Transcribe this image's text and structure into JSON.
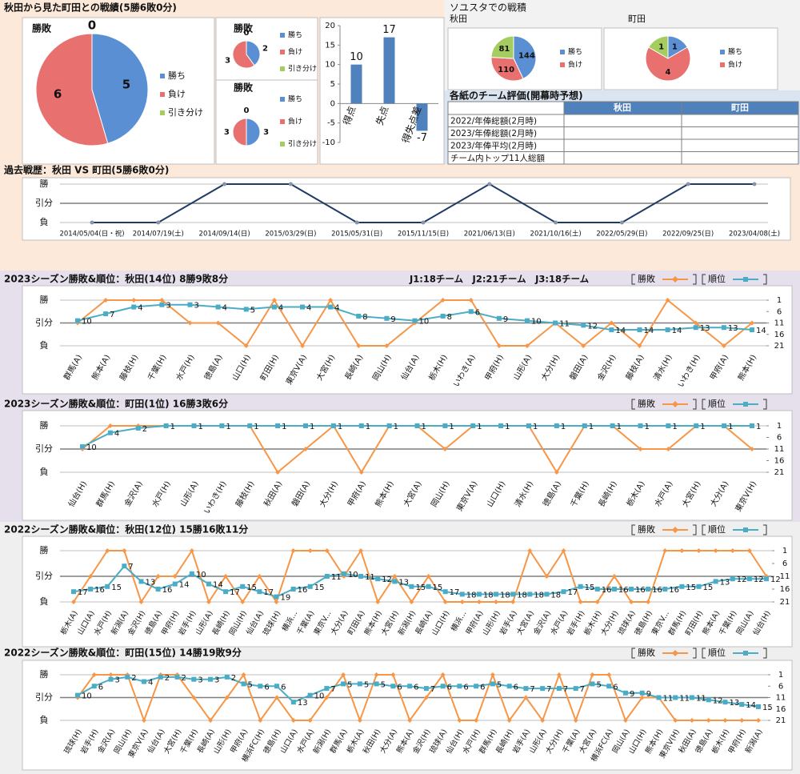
{
  "sections": {
    "record_title": "秋田から見た町田との戦績(5勝6敗0分)",
    "soyusta_title": "ソユスタでの戦積"
  },
  "table": {
    "title": "各紙のチーム評価(開幕時予想)",
    "columns": [
      "秋田",
      "町田"
    ],
    "rows": [
      "2022/年俸総額(2月時)",
      "2023/年俸総額(2月時)",
      "2023/年俸平均(2月時)",
      "チーム内トップ11人総額"
    ]
  },
  "chart_data": [
    {
      "type": "pie",
      "title": "勝敗",
      "categories": [
        "勝ち",
        "負け",
        "引き分け"
      ],
      "values": [
        5,
        6,
        0
      ],
      "colors": [
        "#5b8fd3",
        "#e8706e",
        "#a5cc5e"
      ]
    },
    {
      "type": "pie",
      "title": "勝敗",
      "categories": [
        "勝ち",
        "負け",
        "引き分け"
      ],
      "values": [
        2,
        3,
        0
      ],
      "colors": [
        "#5b8fd3",
        "#e8706e",
        "#a5cc5e"
      ]
    },
    {
      "type": "pie",
      "title": "勝敗",
      "categories": [
        "勝ち",
        "負け",
        "引き分け"
      ],
      "values": [
        3,
        3,
        0
      ],
      "colors": [
        "#5b8fd3",
        "#e8706e",
        "#a5cc5e"
      ]
    },
    {
      "type": "bar",
      "categories": [
        "得点",
        "失点",
        "得失点差"
      ],
      "values": [
        10,
        17,
        -7
      ],
      "color": "#4f81bd",
      "ylim": [
        -10,
        20
      ],
      "yticks": [
        -10,
        -5,
        0,
        5,
        10,
        15,
        20
      ]
    },
    {
      "type": "pie",
      "title": "秋田",
      "categories": [
        "勝ち",
        "負け",
        null
      ],
      "values": [
        144,
        110,
        81
      ],
      "colors": [
        "#5b8fd3",
        "#e8706e",
        "#a5cc5e"
      ]
    },
    {
      "type": "pie",
      "title": "町田",
      "categories": [
        "勝ち",
        "負け",
        null
      ],
      "values": [
        1,
        4,
        1
      ],
      "colors": [
        "#5b8fd3",
        "#e8706e",
        "#a5cc5e"
      ]
    },
    {
      "type": "line",
      "title": "過去戦歴：秋田 VS 町田(5勝6敗0分)",
      "categories": [
        "2014/05/04(日・祝)",
        "2014/07/19(土)",
        "2014/09/14(日)",
        "2015/03/29(日)",
        "2015/05/31(日)",
        "2015/11/15(日)",
        "2021/06/13(日)",
        "2021/10/16(土)",
        "2022/05/29(日)",
        "2022/09/25(日)",
        "2023/04/08(土)"
      ],
      "values": [
        -1,
        -1,
        1,
        1,
        -1,
        -1,
        1,
        -1,
        -1,
        1,
        1
      ],
      "color": "#1f3b64",
      "ylim": [
        -1,
        1
      ],
      "yticks": [
        {
          "value": -1,
          "label": "負"
        },
        {
          "value": 0,
          "label": "引分"
        },
        {
          "value": 1,
          "label": "勝"
        }
      ]
    },
    {
      "type": "line",
      "title": "2023シーズン勝敗&順位：秋田(14位) 8勝9敗8分",
      "annotation": "J1:18チーム　J2:21チーム　J3:18チーム",
      "categories": [
        "群馬(A)",
        "熊本(A)",
        "藤枝(H)",
        "千葉(H)",
        "水戸(H)",
        "徳島(A)",
        "山口(H)",
        "町田(H)",
        "東京V(A)",
        "大宮(H)",
        "長崎(A)",
        "岡山(H)",
        "仙台(A)",
        "栃木(H)",
        "いわき(A)",
        "甲府(H)",
        "山形(A)",
        "大分(H)",
        "磐田(A)",
        "金沢(H)",
        "藤枝(A)",
        "清水(H)",
        "いわき(H)",
        "甲府(A)",
        "熊本(H)"
      ],
      "series": [
        {
          "name": "勝敗",
          "color": "#f79646",
          "values": [
            0,
            1,
            1,
            1,
            0,
            0,
            -1,
            1,
            -1,
            1,
            -1,
            -1,
            0,
            1,
            1,
            -1,
            -1,
            0,
            -1,
            0,
            -1,
            1,
            0,
            -1,
            0
          ]
        },
        {
          "name": "順位",
          "color": "#4bacc6",
          "axis": "y2",
          "values": [
            10,
            7,
            4,
            3,
            3,
            4,
            5,
            4,
            4,
            4,
            8,
            9,
            10,
            8,
            6,
            9,
            10,
            11,
            12,
            14,
            14,
            14,
            13,
            13,
            14
          ]
        }
      ],
      "ylim": [
        -1,
        1
      ],
      "yticks": [
        {
          "value": -1,
          "label": "負"
        },
        {
          "value": 0,
          "label": "引分"
        },
        {
          "value": 1,
          "label": "勝"
        }
      ],
      "y2lim": [
        21,
        1
      ],
      "y2ticks": [
        1,
        6,
        11,
        16,
        21
      ]
    },
    {
      "type": "line",
      "title": "2023シーズン勝敗&順位：町田(1位) 16勝3敗6分",
      "categories": [
        "仙台(H)",
        "群馬(H)",
        "金沢(A)",
        "水戸(H)",
        "山形(A)",
        "いわき(H)",
        "藤枝(H)",
        "秋田(A)",
        "磐田(A)",
        "大分(H)",
        "甲府(A)",
        "熊本(H)",
        "大宮(A)",
        "岡山(H)",
        "東京V(A)",
        "山口(H)",
        "清水(H)",
        "徳島(A)",
        "千葉(H)",
        "長崎(H)",
        "栃木(A)",
        "水戸(A)",
        "大宮(H)",
        "大分(A)",
        "東京V(H)"
      ],
      "series": [
        {
          "name": "勝敗",
          "color": "#f79646",
          "values": [
            0,
            1,
            1,
            1,
            1,
            1,
            1,
            -1,
            0,
            1,
            -1,
            1,
            1,
            0,
            1,
            1,
            1,
            -1,
            1,
            1,
            0,
            0,
            1,
            1,
            0
          ]
        },
        {
          "name": "順位",
          "color": "#4bacc6",
          "axis": "y2",
          "values": [
            10,
            4,
            2,
            1,
            1,
            1,
            1,
            1,
            1,
            1,
            1,
            1,
            1,
            1,
            1,
            1,
            1,
            1,
            1,
            1,
            1,
            1,
            1,
            1,
            1
          ]
        }
      ],
      "ylim": [
        -1,
        1
      ],
      "yticks": [
        {
          "value": -1,
          "label": "負"
        },
        {
          "value": 0,
          "label": "引分"
        },
        {
          "value": 1,
          "label": "勝"
        }
      ],
      "y2lim": [
        21,
        1
      ],
      "y2ticks": [
        1,
        6,
        11,
        16,
        21
      ]
    },
    {
      "type": "line",
      "title": "2022シーズン勝敗&順位：秋田(12位) 15勝16敗11分",
      "categories": [
        "栃木(A)",
        "山口(A)",
        "水戸(H)",
        "新潟(A)",
        "金沢(H)",
        "徳島(A)",
        "甲府(H)",
        "岩手(H)",
        "山形(A)",
        "長崎(H)",
        "岡山(H)",
        "仙台(A)",
        "琉球(H)",
        "横浜...",
        "千葉(A)",
        "東京V...",
        "大分(A)",
        "町田(A)",
        "熊本(H)",
        "大宮(H)",
        "新潟(H)",
        "長崎(A)",
        "山口(H)",
        "横浜...",
        "甲府(A)",
        "山形(H)",
        "岩手(A)",
        "大宮(A)",
        "金沢(A)",
        "水戸(A)",
        "岩手(H)",
        "栃木(H)",
        "大分(H)",
        "琉球(A)",
        "徳島(H)",
        "東京V...",
        "群馬(H)",
        "町田(H)",
        "熊本(A)",
        "千葉(H)",
        "岡山(A)",
        "仙台(H)"
      ],
      "series": [
        {
          "name": "勝敗",
          "color": "#f79646",
          "values": [
            -1,
            0,
            1,
            1,
            -1,
            0,
            0,
            1,
            -1,
            0,
            -1,
            0,
            -1,
            1,
            1,
            1,
            0,
            1,
            -1,
            0,
            -1,
            0,
            -1,
            -1,
            -1,
            -1,
            -1,
            1,
            0,
            1,
            -1,
            -1,
            0,
            -1,
            -1,
            1,
            1,
            1,
            1,
            1,
            1,
            0
          ]
        },
        {
          "name": "順位",
          "color": "#4bacc6",
          "axis": "y2",
          "values": [
            17,
            16,
            15,
            7,
            13,
            16,
            14,
            10,
            14,
            17,
            15,
            17,
            19,
            16,
            15,
            11,
            10,
            11,
            12,
            13,
            15,
            15,
            17,
            18,
            18,
            18,
            18,
            18,
            18,
            17,
            15,
            16,
            16,
            16,
            16,
            16,
            15,
            15,
            13,
            12,
            12,
            12
          ]
        }
      ],
      "ylim": [
        -1,
        1
      ],
      "yticks": [
        {
          "value": -1,
          "label": "負"
        },
        {
          "value": 0,
          "label": "引分"
        },
        {
          "value": 1,
          "label": "勝"
        }
      ],
      "y2lim": [
        21,
        1
      ],
      "y2ticks": [
        1,
        6,
        11,
        16,
        21
      ]
    },
    {
      "type": "line",
      "title": "2022シーズン勝敗&順位：町田(15位) 14勝19敗9分",
      "categories": [
        "琉球(H)",
        "岩手(H)",
        "金沢(A)",
        "岡山(H)",
        "東京V(A)",
        "仙台(A)",
        "大宮(H)",
        "千葉(H)",
        "長崎(A)",
        "山形(H)",
        "甲府(A)",
        "横浜FC(H)",
        "徳島(H)",
        "山口(A)",
        "水戸(A)",
        "新潟(H)",
        "群馬(A)",
        "栃木(A)",
        "秋田(H)",
        "大分(A)",
        "熊本(A)",
        "金沢(H)",
        "琉球(A)",
        "仙台(H)",
        "水戸(H)",
        "群馬(H)",
        "長崎(H)",
        "岩手(A)",
        "山形(A)",
        "大分(H)",
        "千葉(A)",
        "大宮(A)",
        "横浜FC(A)",
        "岡山(A)",
        "山口(H)",
        "熊本(H)",
        "東京V(H)",
        "秋田(A)",
        "徳島(A)",
        "栃木(H)",
        "甲府(H)",
        "新潟(A)"
      ],
      "series": [
        {
          "name": "勝敗",
          "color": "#f79646",
          "values": [
            0,
            1,
            1,
            1,
            -1,
            1,
            1,
            0,
            -1,
            0,
            1,
            -1,
            0,
            -1,
            -1,
            0,
            1,
            -1,
            1,
            1,
            -1,
            0,
            1,
            -1,
            -1,
            1,
            -1,
            0,
            -1,
            1,
            -1,
            1,
            1,
            -1,
            0,
            0,
            -1,
            -1,
            -1,
            -1,
            -1,
            -1
          ]
        },
        {
          "name": "順位",
          "color": "#4bacc6",
          "axis": "y2",
          "values": [
            10,
            6,
            3,
            2,
            4,
            2,
            2,
            3,
            3,
            2,
            5,
            6,
            6,
            13,
            10,
            7,
            5,
            5,
            5,
            6,
            6,
            7,
            6,
            6,
            6,
            5,
            6,
            7,
            7,
            7,
            7,
            5,
            6,
            9,
            9,
            11,
            11,
            11,
            12,
            13,
            14,
            15
          ]
        }
      ],
      "ylim": [
        -1,
        1
      ],
      "yticks": [
        {
          "value": -1,
          "label": "負"
        },
        {
          "value": 0,
          "label": "引分"
        },
        {
          "value": 1,
          "label": "勝"
        }
      ],
      "y2lim": [
        21,
        1
      ],
      "y2ticks": [
        1,
        6,
        11,
        16,
        21
      ]
    }
  ]
}
